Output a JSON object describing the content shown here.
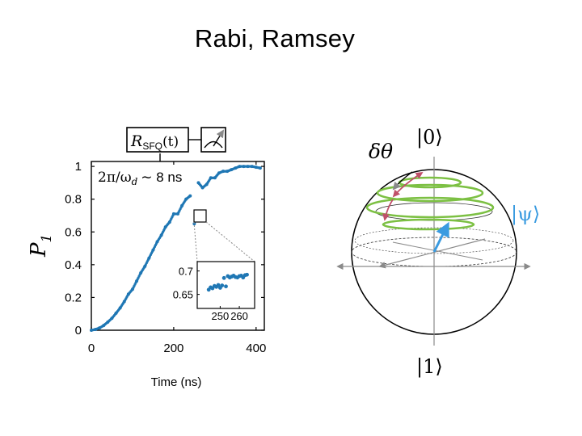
{
  "slide": {
    "title": "Rabi, Ramsey"
  },
  "colors": {
    "data": "#1f77b4",
    "green": "#7cc043",
    "red": "#c0506a",
    "blue": "#3a9be0",
    "gray": "#8a8a8a"
  },
  "circuit": {
    "label_main": "R",
    "label_sub": "SFQ",
    "label_arg": "(t)",
    "meter": "measurement-icon"
  },
  "chart_data": {
    "type": "scatter",
    "xlabel": "Time (ns)",
    "ylabel_main": "P",
    "ylabel_sub": "1",
    "xlim": [
      0,
      420
    ],
    "ylim": [
      0,
      1.03
    ],
    "xticks": [
      0,
      200,
      400
    ],
    "yticks": [
      0,
      0.2,
      0.4,
      0.6,
      0.8,
      1
    ],
    "ytick_labels": [
      "0",
      "0.2",
      "0.4",
      "0.6",
      "0.8",
      "1"
    ],
    "annotation_period": "2π/ω",
    "annotation_period_sub": "d",
    "annotation_value": "∼ 8 ns",
    "series": [
      {
        "x": [
          0,
          10,
          20,
          30,
          40,
          50,
          60,
          70,
          80,
          90,
          100,
          110,
          120,
          130,
          140,
          150,
          160,
          170,
          180,
          190,
          200,
          210,
          220,
          230,
          240,
          250,
          260,
          270,
          280,
          290,
          300,
          310,
          320,
          330,
          340,
          350,
          360,
          370,
          380,
          390,
          400,
          410
        ],
        "y": [
          0.0,
          0.005,
          0.014,
          0.029,
          0.05,
          0.073,
          0.104,
          0.136,
          0.175,
          0.22,
          0.25,
          0.3,
          0.35,
          0.39,
          0.44,
          0.49,
          0.54,
          0.58,
          0.63,
          0.66,
          0.71,
          0.71,
          0.76,
          0.8,
          0.82,
          0.65,
          0.9,
          0.87,
          0.89,
          0.93,
          0.93,
          0.96,
          0.97,
          0.97,
          0.98,
          0.99,
          1.0,
          1.0,
          1.0,
          1.0,
          0.995,
          0.99
        ]
      }
    ],
    "inset": {
      "xticks": [
        250,
        260
      ],
      "yticks": [
        0.65,
        0.7
      ],
      "ytick_labels": [
        "0.65",
        "0.7"
      ],
      "xlim": [
        238,
        268
      ],
      "ylim": [
        0.62,
        0.72
      ],
      "points": {
        "x": [
          244,
          245,
          246,
          247,
          248,
          249,
          250,
          251,
          252,
          253,
          254,
          255,
          256,
          257,
          258,
          259,
          260,
          261,
          262,
          263,
          264
        ],
        "y": [
          0.66,
          0.665,
          0.663,
          0.668,
          0.666,
          0.67,
          0.664,
          0.669,
          0.685,
          0.667,
          0.689,
          0.686,
          0.688,
          0.69,
          0.687,
          0.686,
          0.689,
          0.69,
          0.686,
          0.691,
          0.692
        ]
      }
    }
  },
  "bloch": {
    "ket_top": "|0⟩",
    "ket_bottom": "|1⟩",
    "ket_psi": "|ψ⟩",
    "delta_theta": "δθ"
  }
}
